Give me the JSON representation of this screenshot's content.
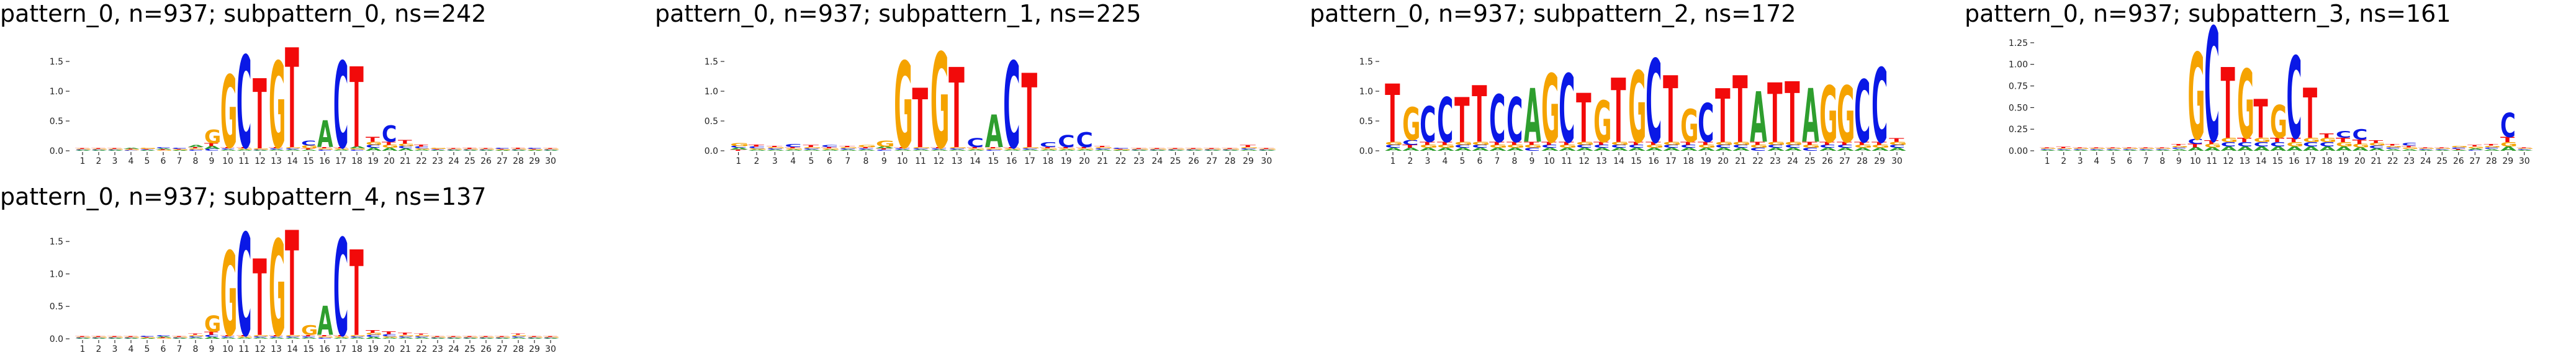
{
  "colors": {
    "A": "#2e9e2e",
    "C": "#0a18e6",
    "G": "#f5a300",
    "T": "#f20a0a",
    "axis": "#000000"
  },
  "chart_data": [
    {
      "type": "sequence-logo",
      "title": "pattern_0, n=937; subpattern_0, ns=242",
      "positions": [
        1,
        2,
        3,
        4,
        5,
        6,
        7,
        8,
        9,
        10,
        11,
        12,
        13,
        14,
        15,
        16,
        17,
        18,
        19,
        20,
        21,
        22,
        23,
        24,
        25,
        26,
        27,
        28,
        29,
        30
      ],
      "ylim": [
        0,
        1.75
      ],
      "yticks": [
        "0.0",
        "0.5",
        "1.0",
        "1.5"
      ],
      "columns": [
        {
          "A": 0.01,
          "C": 0.01,
          "G": 0.01,
          "T": 0.01
        },
        {
          "A": 0.01,
          "C": 0.01,
          "G": 0.01,
          "T": 0.01
        },
        {
          "A": 0.01,
          "C": 0.01,
          "G": 0.01,
          "T": 0.01
        },
        {
          "A": 0.02,
          "C": 0.01,
          "G": 0.01,
          "T": 0.01
        },
        {
          "A": 0.01,
          "C": 0.01,
          "G": 0.02,
          "T": 0.01
        },
        {
          "A": 0.02,
          "C": 0.02,
          "G": 0.01,
          "T": 0.01
        },
        {
          "A": 0.01,
          "C": 0.02,
          "G": 0.01,
          "T": 0.01
        },
        {
          "A": 0.03,
          "C": 0.02,
          "G": 0.02,
          "T": 0.02
        },
        {
          "A": 0.05,
          "C": 0.03,
          "G": 0.22,
          "T": 0.05
        },
        {
          "A": 0.02,
          "C": 0.02,
          "G": 1.22,
          "T": 0.02
        },
        {
          "A": 0.02,
          "C": 1.55,
          "G": 0.02,
          "T": 0.02
        },
        {
          "A": 0.01,
          "C": 0.01,
          "G": 0.02,
          "T": 1.18
        },
        {
          "A": 0.02,
          "C": 0.02,
          "G": 1.45,
          "T": 0.02
        },
        {
          "A": 0.02,
          "C": 0.02,
          "G": 0.02,
          "T": 1.68
        },
        {
          "A": 0.02,
          "C": 0.08,
          "G": 0.05,
          "T": 0.02
        },
        {
          "A": 0.45,
          "C": 0.02,
          "G": 0.02,
          "T": 0.02
        },
        {
          "A": 0.02,
          "C": 1.45,
          "G": 0.02,
          "T": 0.02
        },
        {
          "A": 0.03,
          "C": 0.02,
          "G": 0.02,
          "T": 1.35
        },
        {
          "A": 0.05,
          "C": 0.05,
          "G": 0.05,
          "T": 0.08
        },
        {
          "A": 0.05,
          "C": 0.28,
          "G": 0.05,
          "T": 0.05
        },
        {
          "A": 0.04,
          "C": 0.04,
          "G": 0.04,
          "T": 0.06
        },
        {
          "A": 0.02,
          "C": 0.03,
          "G": 0.02,
          "T": 0.03
        },
        {
          "A": 0.01,
          "C": 0.01,
          "G": 0.02,
          "T": 0.01
        },
        {
          "A": 0.01,
          "C": 0.01,
          "G": 0.01,
          "T": 0.01
        },
        {
          "A": 0.01,
          "C": 0.01,
          "G": 0.01,
          "T": 0.02
        },
        {
          "A": 0.01,
          "C": 0.01,
          "G": 0.01,
          "T": 0.01
        },
        {
          "A": 0.01,
          "C": 0.02,
          "G": 0.01,
          "T": 0.01
        },
        {
          "A": 0.01,
          "C": 0.01,
          "G": 0.01,
          "T": 0.02
        },
        {
          "A": 0.01,
          "C": 0.02,
          "G": 0.01,
          "T": 0.01
        },
        {
          "A": 0.01,
          "C": 0.01,
          "G": 0.01,
          "T": 0.01
        }
      ]
    },
    {
      "type": "sequence-logo",
      "title": "pattern_0, n=937; subpattern_1, ns=225",
      "positions": [
        1,
        2,
        3,
        4,
        5,
        6,
        7,
        8,
        9,
        10,
        11,
        12,
        13,
        14,
        15,
        16,
        17,
        18,
        19,
        20,
        21,
        22,
        23,
        24,
        25,
        26,
        27,
        28,
        29,
        30
      ],
      "ylim": [
        0,
        1.75
      ],
      "yticks": [
        "0.0",
        "0.5",
        "1.0",
        "1.5"
      ],
      "columns": [
        {
          "A": 0.03,
          "C": 0.03,
          "G": 0.05,
          "T": 0.02
        },
        {
          "A": 0.02,
          "C": 0.03,
          "G": 0.02,
          "T": 0.03
        },
        {
          "A": 0.02,
          "C": 0.02,
          "G": 0.02,
          "T": 0.02
        },
        {
          "A": 0.02,
          "C": 0.05,
          "G": 0.02,
          "T": 0.02
        },
        {
          "A": 0.02,
          "C": 0.02,
          "G": 0.02,
          "T": 0.03
        },
        {
          "A": 0.02,
          "C": 0.03,
          "G": 0.02,
          "T": 0.02
        },
        {
          "A": 0.02,
          "C": 0.02,
          "G": 0.02,
          "T": 0.02
        },
        {
          "A": 0.02,
          "C": 0.02,
          "G": 0.03,
          "T": 0.02
        },
        {
          "A": 0.03,
          "C": 0.02,
          "G": 0.1,
          "T": 0.02
        },
        {
          "A": 0.02,
          "C": 0.02,
          "G": 1.45,
          "T": 0.02
        },
        {
          "A": 0.02,
          "C": 0.02,
          "G": 0.02,
          "T": 1.0
        },
        {
          "A": 0.02,
          "C": 0.02,
          "G": 1.6,
          "T": 0.02
        },
        {
          "A": 0.02,
          "C": 0.02,
          "G": 0.02,
          "T": 1.35
        },
        {
          "A": 0.02,
          "C": 0.15,
          "G": 0.02,
          "T": 0.02
        },
        {
          "A": 0.55,
          "C": 0.02,
          "G": 0.02,
          "T": 0.02
        },
        {
          "A": 0.02,
          "C": 1.45,
          "G": 0.02,
          "T": 0.02
        },
        {
          "A": 0.02,
          "C": 0.02,
          "G": 0.02,
          "T": 1.25
        },
        {
          "A": 0.02,
          "C": 0.08,
          "G": 0.02,
          "T": 0.02
        },
        {
          "A": 0.02,
          "C": 0.2,
          "G": 0.02,
          "T": 0.02
        },
        {
          "A": 0.02,
          "C": 0.25,
          "G": 0.02,
          "T": 0.02
        },
        {
          "A": 0.02,
          "C": 0.02,
          "G": 0.02,
          "T": 0.02
        },
        {
          "A": 0.01,
          "C": 0.02,
          "G": 0.01,
          "T": 0.01
        },
        {
          "A": 0.01,
          "C": 0.01,
          "G": 0.01,
          "T": 0.01
        },
        {
          "A": 0.01,
          "C": 0.01,
          "G": 0.01,
          "T": 0.01
        },
        {
          "A": 0.01,
          "C": 0.01,
          "G": 0.01,
          "T": 0.01
        },
        {
          "A": 0.01,
          "C": 0.01,
          "G": 0.01,
          "T": 0.01
        },
        {
          "A": 0.01,
          "C": 0.01,
          "G": 0.01,
          "T": 0.01
        },
        {
          "A": 0.01,
          "C": 0.01,
          "G": 0.01,
          "T": 0.01
        },
        {
          "A": 0.02,
          "C": 0.02,
          "G": 0.02,
          "T": 0.03
        },
        {
          "A": 0.01,
          "C": 0.01,
          "G": 0.01,
          "T": 0.01
        }
      ]
    },
    {
      "type": "sequence-logo",
      "title": "pattern_0, n=937; subpattern_2, ns=172",
      "positions": [
        1,
        2,
        3,
        4,
        5,
        6,
        7,
        8,
        9,
        10,
        11,
        12,
        13,
        14,
        15,
        16,
        17,
        18,
        19,
        20,
        21,
        22,
        23,
        24,
        25,
        26,
        27,
        28,
        29,
        30
      ],
      "ylim": [
        0,
        1.75
      ],
      "yticks": [
        "0.0",
        "0.5",
        "1.0",
        "1.5"
      ],
      "columns": [
        {
          "A": 0.05,
          "C": 0.05,
          "G": 0.05,
          "T": 0.98
        },
        {
          "A": 0.05,
          "C": 0.08,
          "G": 0.55,
          "T": 0.05
        },
        {
          "A": 0.05,
          "C": 0.6,
          "G": 0.05,
          "T": 0.05
        },
        {
          "A": 0.05,
          "C": 0.75,
          "G": 0.05,
          "T": 0.05
        },
        {
          "A": 0.05,
          "C": 0.05,
          "G": 0.05,
          "T": 0.75
        },
        {
          "A": 0.05,
          "C": 0.05,
          "G": 0.05,
          "T": 0.95
        },
        {
          "A": 0.05,
          "C": 0.8,
          "G": 0.05,
          "T": 0.05
        },
        {
          "A": 0.05,
          "C": 0.75,
          "G": 0.05,
          "T": 0.05
        },
        {
          "A": 0.9,
          "C": 0.05,
          "G": 0.05,
          "T": 0.05
        },
        {
          "A": 0.05,
          "C": 0.05,
          "G": 1.15,
          "T": 0.05
        },
        {
          "A": 0.05,
          "C": 1.15,
          "G": 0.05,
          "T": 0.05
        },
        {
          "A": 0.05,
          "C": 0.05,
          "G": 0.05,
          "T": 0.82
        },
        {
          "A": 0.05,
          "C": 0.05,
          "G": 0.7,
          "T": 0.05
        },
        {
          "A": 0.05,
          "C": 0.05,
          "G": 0.05,
          "T": 1.08
        },
        {
          "A": 0.05,
          "C": 0.05,
          "G": 1.2,
          "T": 0.05
        },
        {
          "A": 0.05,
          "C": 1.4,
          "G": 0.05,
          "T": 0.05
        },
        {
          "A": 0.05,
          "C": 0.05,
          "G": 0.05,
          "T": 1.12
        },
        {
          "A": 0.05,
          "C": 0.05,
          "G": 0.55,
          "T": 0.05
        },
        {
          "A": 0.05,
          "C": 0.65,
          "G": 0.05,
          "T": 0.05
        },
        {
          "A": 0.05,
          "C": 0.05,
          "G": 0.05,
          "T": 0.9
        },
        {
          "A": 0.05,
          "C": 0.05,
          "G": 0.05,
          "T": 1.12
        },
        {
          "A": 0.85,
          "C": 0.05,
          "G": 0.05,
          "T": 0.05
        },
        {
          "A": 0.05,
          "C": 0.05,
          "G": 0.05,
          "T": 1.0
        },
        {
          "A": 0.05,
          "C": 0.05,
          "G": 0.05,
          "T": 1.02
        },
        {
          "A": 0.9,
          "C": 0.05,
          "G": 0.05,
          "T": 0.05
        },
        {
          "A": 0.05,
          "C": 0.05,
          "G": 0.95,
          "T": 0.05
        },
        {
          "A": 0.05,
          "C": 0.05,
          "G": 0.95,
          "T": 0.05
        },
        {
          "A": 0.05,
          "C": 1.05,
          "G": 0.05,
          "T": 0.05
        },
        {
          "A": 0.05,
          "C": 1.25,
          "G": 0.05,
          "T": 0.05
        },
        {
          "A": 0.05,
          "C": 0.05,
          "G": 0.05,
          "T": 0.06
        }
      ]
    },
    {
      "type": "sequence-logo",
      "title": "pattern_0, n=937; subpattern_3, ns=161",
      "positions": [
        1,
        2,
        3,
        4,
        5,
        6,
        7,
        8,
        9,
        10,
        11,
        12,
        13,
        14,
        15,
        16,
        17,
        18,
        19,
        20,
        21,
        22,
        23,
        24,
        25,
        26,
        27,
        28,
        29,
        30
      ],
      "ylim": [
        0,
        1.4
      ],
      "yticks": [
        "0.00",
        "0.25",
        "0.50",
        "0.75",
        "1.00",
        "1.25"
      ],
      "columns": [
        {
          "A": 0.01,
          "C": 0.01,
          "G": 0.01,
          "T": 0.01
        },
        {
          "A": 0.01,
          "C": 0.01,
          "G": 0.01,
          "T": 0.02
        },
        {
          "A": 0.01,
          "C": 0.01,
          "G": 0.01,
          "T": 0.01
        },
        {
          "A": 0.01,
          "C": 0.01,
          "G": 0.01,
          "T": 0.01
        },
        {
          "A": 0.01,
          "C": 0.01,
          "G": 0.01,
          "T": 0.01
        },
        {
          "A": 0.01,
          "C": 0.01,
          "G": 0.01,
          "T": 0.01
        },
        {
          "A": 0.01,
          "C": 0.01,
          "G": 0.01,
          "T": 0.01
        },
        {
          "A": 0.01,
          "C": 0.01,
          "G": 0.01,
          "T": 0.01
        },
        {
          "A": 0.02,
          "C": 0.02,
          "G": 0.02,
          "T": 0.02
        },
        {
          "A": 0.04,
          "C": 0.06,
          "G": 1.0,
          "T": 0.04
        },
        {
          "A": 0.04,
          "C": 1.32,
          "G": 0.04,
          "T": 0.04
        },
        {
          "A": 0.05,
          "C": 0.05,
          "G": 0.05,
          "T": 0.82
        },
        {
          "A": 0.05,
          "C": 0.05,
          "G": 0.8,
          "T": 0.05
        },
        {
          "A": 0.05,
          "C": 0.05,
          "G": 0.05,
          "T": 0.45
        },
        {
          "A": 0.05,
          "C": 0.05,
          "G": 0.38,
          "T": 0.05
        },
        {
          "A": 0.05,
          "C": 0.95,
          "G": 0.05,
          "T": 0.05
        },
        {
          "A": 0.05,
          "C": 0.05,
          "G": 0.05,
          "T": 0.58
        },
        {
          "A": 0.05,
          "C": 0.05,
          "G": 0.05,
          "T": 0.05
        },
        {
          "A": 0.05,
          "C": 0.08,
          "G": 0.05,
          "T": 0.05
        },
        {
          "A": 0.04,
          "C": 0.12,
          "G": 0.04,
          "T": 0.05
        },
        {
          "A": 0.03,
          "C": 0.03,
          "G": 0.03,
          "T": 0.03
        },
        {
          "A": 0.02,
          "C": 0.02,
          "G": 0.02,
          "T": 0.02
        },
        {
          "A": 0.02,
          "C": 0.03,
          "G": 0.02,
          "T": 0.02
        },
        {
          "A": 0.01,
          "C": 0.01,
          "G": 0.01,
          "T": 0.01
        },
        {
          "A": 0.01,
          "C": 0.01,
          "G": 0.01,
          "T": 0.01
        },
        {
          "A": 0.01,
          "C": 0.02,
          "G": 0.02,
          "T": 0.01
        },
        {
          "A": 0.02,
          "C": 0.01,
          "G": 0.02,
          "T": 0.02
        },
        {
          "A": 0.02,
          "C": 0.02,
          "G": 0.02,
          "T": 0.02
        },
        {
          "A": 0.05,
          "C": 0.28,
          "G": 0.05,
          "T": 0.06
        },
        {
          "A": 0.01,
          "C": 0.01,
          "G": 0.01,
          "T": 0.01
        }
      ]
    },
    {
      "type": "sequence-logo",
      "title": "pattern_0, n=937; subpattern_4, ns=137",
      "positions": [
        1,
        2,
        3,
        4,
        5,
        6,
        7,
        8,
        9,
        10,
        11,
        12,
        13,
        14,
        15,
        16,
        17,
        18,
        19,
        20,
        21,
        22,
        23,
        24,
        25,
        26,
        27,
        28,
        29,
        30
      ],
      "ylim": [
        0,
        1.75
      ],
      "yticks": [
        "0.0",
        "0.5",
        "1.0",
        "1.5"
      ],
      "columns": [
        {
          "A": 0.01,
          "C": 0.01,
          "G": 0.01,
          "T": 0.01
        },
        {
          "A": 0.01,
          "C": 0.01,
          "G": 0.01,
          "T": 0.01
        },
        {
          "A": 0.01,
          "C": 0.01,
          "G": 0.01,
          "T": 0.01
        },
        {
          "A": 0.01,
          "C": 0.01,
          "G": 0.01,
          "T": 0.01
        },
        {
          "A": 0.01,
          "C": 0.02,
          "G": 0.01,
          "T": 0.01
        },
        {
          "A": 0.02,
          "C": 0.02,
          "G": 0.01,
          "T": 0.01
        },
        {
          "A": 0.01,
          "C": 0.01,
          "G": 0.01,
          "T": 0.01
        },
        {
          "A": 0.02,
          "C": 0.02,
          "G": 0.02,
          "T": 0.02
        },
        {
          "A": 0.03,
          "C": 0.03,
          "G": 0.25,
          "T": 0.05
        },
        {
          "A": 0.02,
          "C": 0.02,
          "G": 1.3,
          "T": 0.02
        },
        {
          "A": 0.02,
          "C": 1.58,
          "G": 0.02,
          "T": 0.02
        },
        {
          "A": 0.02,
          "C": 0.02,
          "G": 0.02,
          "T": 1.18
        },
        {
          "A": 0.02,
          "C": 0.02,
          "G": 1.48,
          "T": 0.02
        },
        {
          "A": 0.02,
          "C": 0.02,
          "G": 0.02,
          "T": 1.62
        },
        {
          "A": 0.02,
          "C": 0.02,
          "G": 0.15,
          "T": 0.02
        },
        {
          "A": 0.45,
          "C": 0.02,
          "G": 0.02,
          "T": 0.02
        },
        {
          "A": 0.02,
          "C": 1.5,
          "G": 0.02,
          "T": 0.02
        },
        {
          "A": 0.02,
          "C": 0.02,
          "G": 0.02,
          "T": 1.32
        },
        {
          "A": 0.03,
          "C": 0.03,
          "G": 0.03,
          "T": 0.04
        },
        {
          "A": 0.02,
          "C": 0.03,
          "G": 0.02,
          "T": 0.04
        },
        {
          "A": 0.02,
          "C": 0.02,
          "G": 0.02,
          "T": 0.03
        },
        {
          "A": 0.02,
          "C": 0.02,
          "G": 0.02,
          "T": 0.02
        },
        {
          "A": 0.01,
          "C": 0.01,
          "G": 0.01,
          "T": 0.01
        },
        {
          "A": 0.01,
          "C": 0.01,
          "G": 0.01,
          "T": 0.01
        },
        {
          "A": 0.01,
          "C": 0.01,
          "G": 0.01,
          "T": 0.01
        },
        {
          "A": 0.01,
          "C": 0.01,
          "G": 0.01,
          "T": 0.01
        },
        {
          "A": 0.01,
          "C": 0.01,
          "G": 0.01,
          "T": 0.01
        },
        {
          "A": 0.02,
          "C": 0.02,
          "G": 0.02,
          "T": 0.02
        },
        {
          "A": 0.01,
          "C": 0.01,
          "G": 0.01,
          "T": 0.01
        },
        {
          "A": 0.01,
          "C": 0.01,
          "G": 0.01,
          "T": 0.01
        }
      ]
    }
  ]
}
